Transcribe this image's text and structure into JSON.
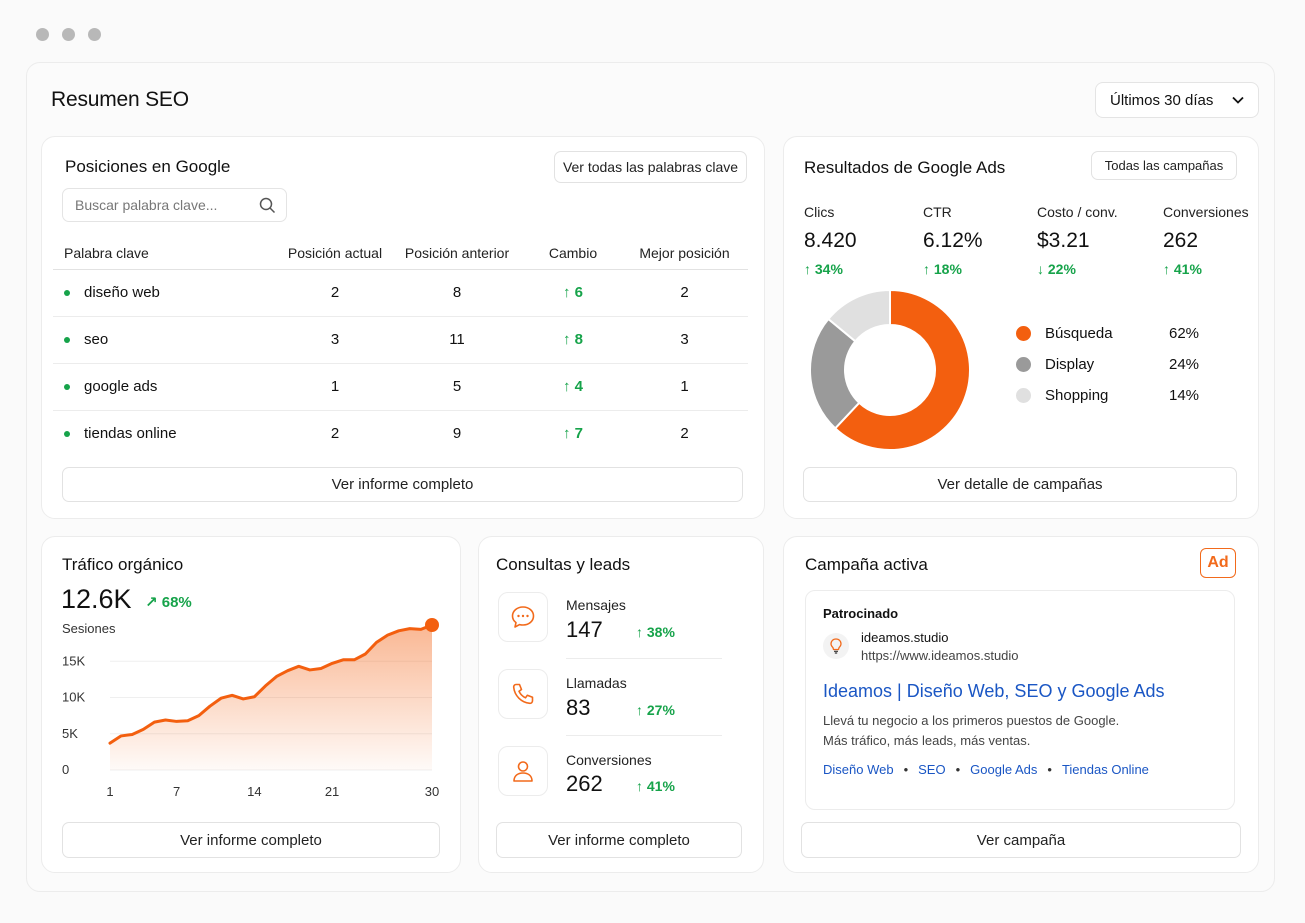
{
  "page": {
    "title": "Resumen SEO",
    "range": "Últimos 30 días"
  },
  "google_positions": {
    "title": "Posiciones en Google",
    "view_all": "Ver todas las palabras clave",
    "search_placeholder": "Buscar palabra clave...",
    "columns": [
      "Palabra clave",
      "Posición actual",
      "Posición anterior",
      "Cambio",
      "Mejor posición"
    ],
    "rows": [
      {
        "keyword": "diseño web",
        "current": "2",
        "previous": "8",
        "change": "6",
        "best": "2"
      },
      {
        "keyword": "seo",
        "current": "3",
        "previous": "11",
        "change": "8",
        "best": "3"
      },
      {
        "keyword": "google ads",
        "current": "1",
        "previous": "5",
        "change": "4",
        "best": "1"
      },
      {
        "keyword": "tiendas online",
        "current": "2",
        "previous": "9",
        "change": "7",
        "best": "2"
      }
    ],
    "report_button": "Ver informe completo"
  },
  "google_ads": {
    "title": "Resultados de Google Ads",
    "all_campaigns": "Todas las campañas",
    "metrics": [
      {
        "label": "Clics",
        "value": "8.420",
        "change": "34%",
        "direction": "up"
      },
      {
        "label": "CTR",
        "value": "6.12%",
        "change": "18%",
        "direction": "up"
      },
      {
        "label": "Costo / conv.",
        "value": "$3.21",
        "change": "22%",
        "direction": "down"
      },
      {
        "label": "Conversiones",
        "value": "262",
        "change": "41%",
        "direction": "up"
      }
    ],
    "breakdown": [
      {
        "name": "Búsqueda",
        "pct": "62%",
        "value": 62,
        "color": "#f35f0f"
      },
      {
        "name": "Display",
        "pct": "24%",
        "value": 24,
        "color": "#9a9a9a"
      },
      {
        "name": "Shopping",
        "pct": "14%",
        "value": 14,
        "color": "#e0e0e0"
      }
    ],
    "detail_button": "Ver detalle de campañas"
  },
  "organic": {
    "title": "Tráfico orgánico",
    "value": "12.6K",
    "change": "68%",
    "ylabel": "Sesiones",
    "report_button": "Ver informe completo"
  },
  "chart_data": {
    "type": "area",
    "title": "",
    "xlabel": "",
    "ylabel": "Sesiones",
    "x_ticks": [
      "1",
      "7",
      "14",
      "21",
      "30"
    ],
    "y_ticks": [
      "0",
      "5K",
      "10K",
      "15K"
    ],
    "ylim": [
      0,
      20000
    ],
    "xlim": [
      1,
      30
    ],
    "color": "#f35f0f",
    "x": [
      1,
      2,
      3,
      4,
      5,
      6,
      7,
      8,
      9,
      10,
      11,
      12,
      13,
      14,
      15,
      16,
      17,
      18,
      19,
      20,
      21,
      22,
      23,
      24,
      25,
      26,
      27,
      28,
      29,
      30
    ],
    "values": [
      3700,
      4700,
      4900,
      5600,
      6600,
      6900,
      6700,
      6800,
      7500,
      8800,
      9900,
      10300,
      9800,
      10100,
      11600,
      12900,
      13700,
      14300,
      13800,
      14000,
      14700,
      15200,
      15200,
      16000,
      17600,
      18600,
      19200,
      19500,
      19400,
      20000
    ]
  },
  "leads": {
    "title": "Consultas y leads",
    "items": [
      {
        "label": "Mensajes",
        "value": "147",
        "change": "38%",
        "icon": "chat-icon"
      },
      {
        "label": "Llamadas",
        "value": "83",
        "change": "27%",
        "icon": "phone-icon"
      },
      {
        "label": "Conversiones",
        "value": "262",
        "change": "41%",
        "icon": "user-icon"
      }
    ],
    "report_button": "Ver informe completo"
  },
  "campaign": {
    "title": "Campaña activa",
    "badge": "Ad",
    "sponsored": "Patrocinado",
    "site_name": "ideamos.studio",
    "site_url": "https://www.ideamos.studio",
    "headline": "Ideamos | Diseño Web, SEO y Google Ads",
    "desc1": "Llevá tu negocio a los primeros puestos de Google.",
    "desc2": "Más tráfico, más leads, más ventas.",
    "links": [
      "Diseño Web",
      "SEO",
      "Google Ads",
      "Tiendas Online"
    ],
    "button": "Ver campaña"
  },
  "colors": {
    "accent": "#f35f0f",
    "positive": "#16a34a",
    "link": "#1a56c4"
  }
}
